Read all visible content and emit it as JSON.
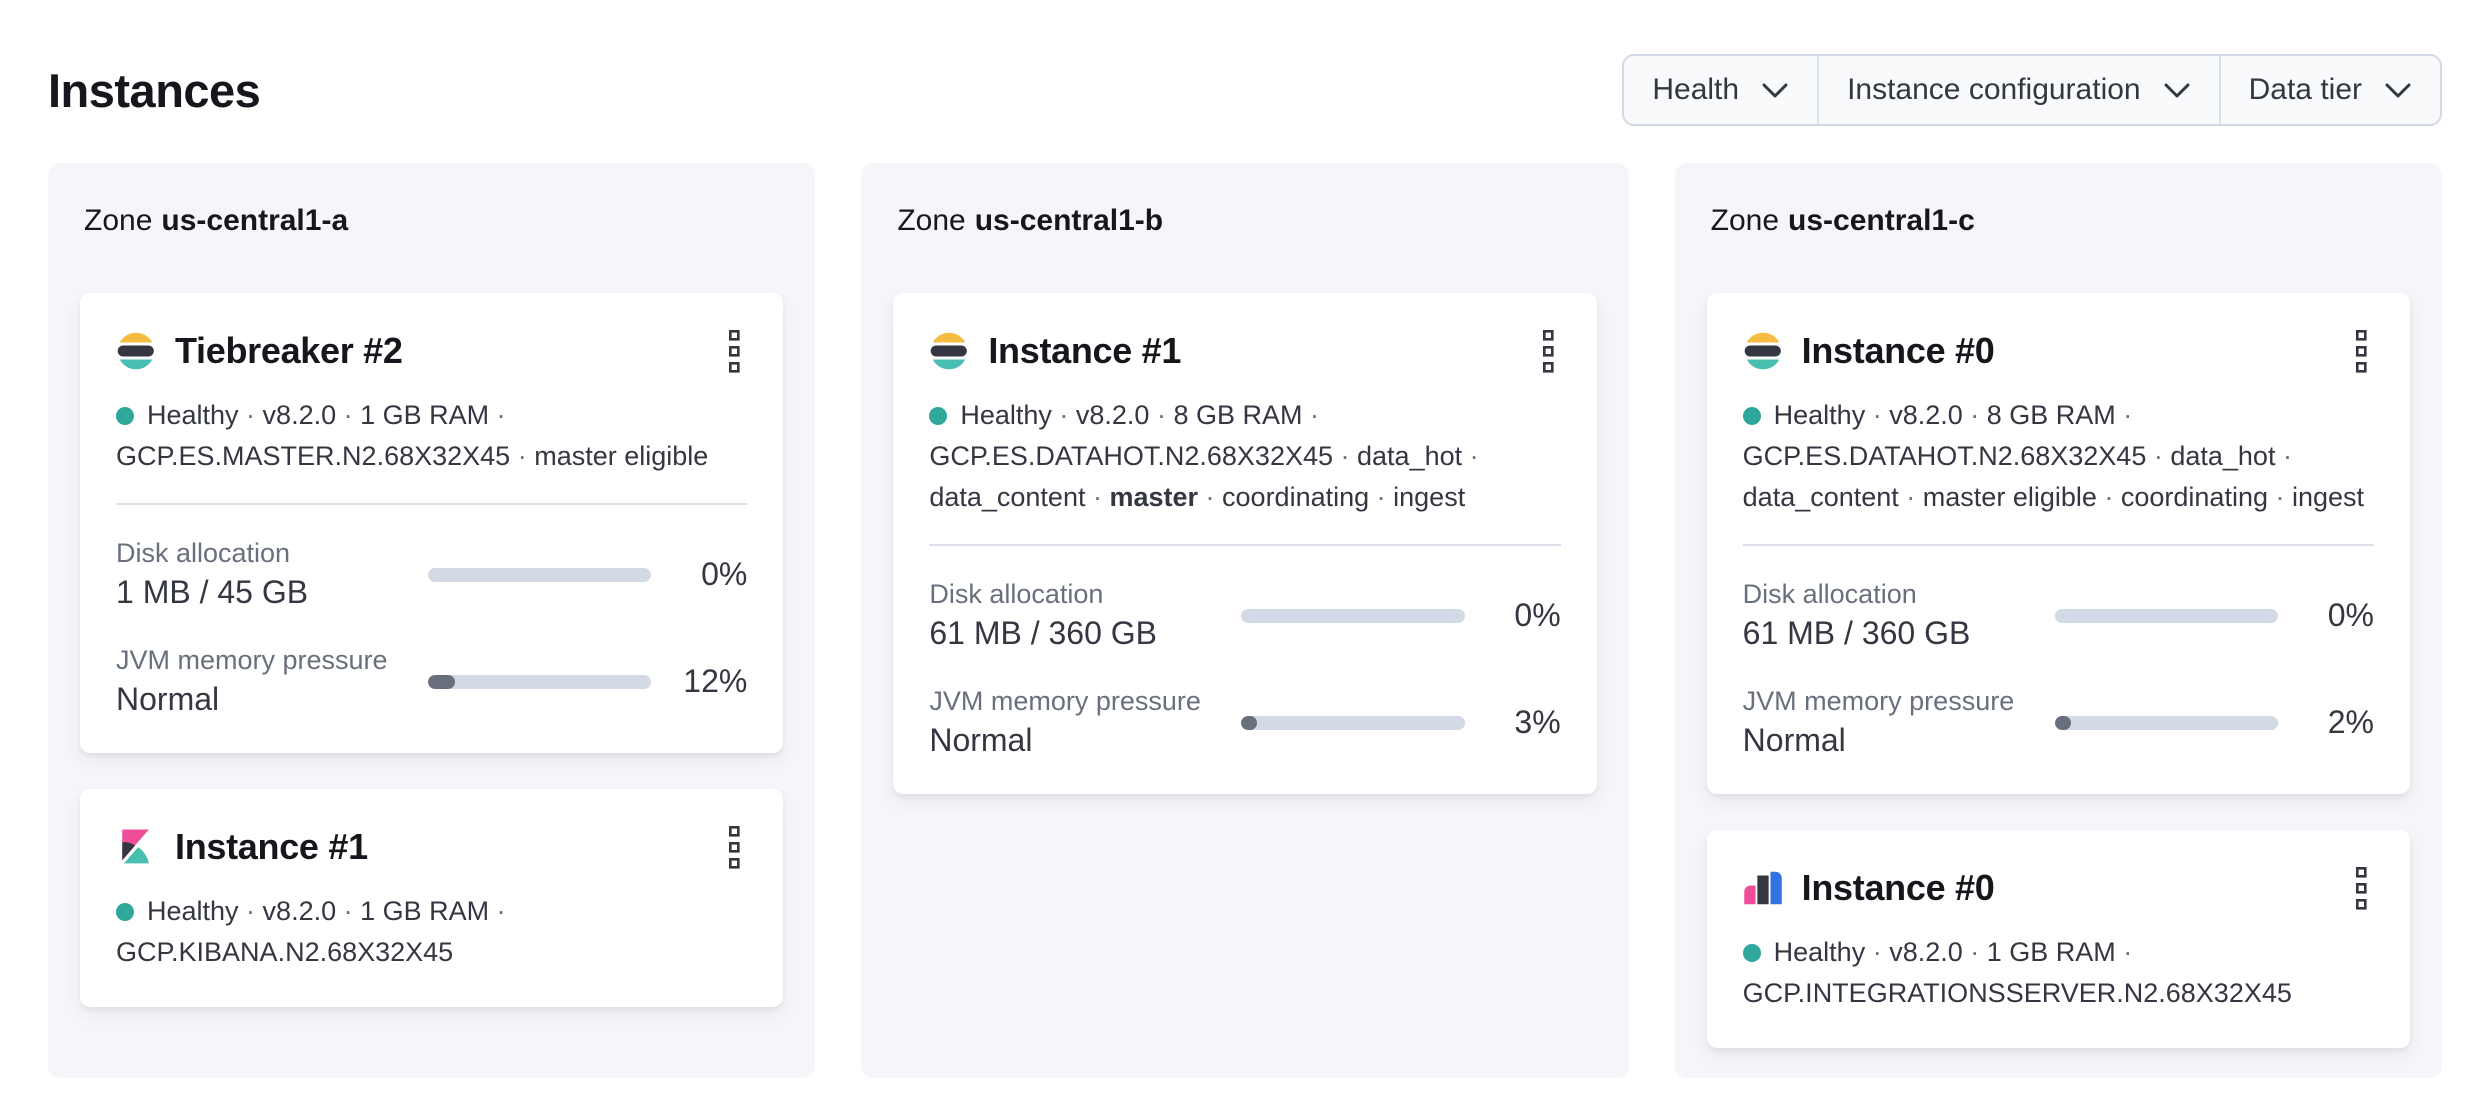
{
  "page": {
    "title": "Instances"
  },
  "meta_separator": "·",
  "filters": [
    {
      "label": "Health"
    },
    {
      "label": "Instance configuration"
    },
    {
      "label": "Data tier"
    }
  ],
  "colors": {
    "health_dot": "#2fa79c",
    "progress_track": "#d3dae6",
    "progress_fill": "#696f7d",
    "logo_yellow": "#f4bd42",
    "logo_teal": "#49bfb1",
    "logo_dark": "#343741",
    "logo_pink": "#f04e98",
    "logo_blue": "#3173e0"
  },
  "zones": [
    {
      "zone_prefix": "Zone",
      "name": "us-central1-a",
      "cards": [
        {
          "logo": "elasticsearch-logo",
          "title": "Tiebreaker #2",
          "meta": [
            {
              "text": "Healthy"
            },
            {
              "text": "v8.2.0"
            },
            {
              "text": "1 GB RAM"
            },
            {
              "text": "GCP.ES.MASTER.N2.68X32X45"
            },
            {
              "text": "master eligible"
            }
          ],
          "metrics": [
            {
              "label": "Disk allocation",
              "value": "1 MB / 45 GB",
              "percent": 0,
              "percent_label": "0%"
            },
            {
              "label": "JVM memory pressure",
              "value": "Normal",
              "percent": 12,
              "percent_label": "12%"
            }
          ]
        },
        {
          "logo": "kibana-logo",
          "title": "Instance #1",
          "meta": [
            {
              "text": "Healthy"
            },
            {
              "text": "v8.2.0"
            },
            {
              "text": "1 GB RAM"
            },
            {
              "text": "GCP.KIBANA.N2.68X32X45"
            }
          ],
          "metrics": []
        }
      ]
    },
    {
      "zone_prefix": "Zone",
      "name": "us-central1-b",
      "cards": [
        {
          "logo": "elasticsearch-logo",
          "title": "Instance #1",
          "meta": [
            {
              "text": "Healthy"
            },
            {
              "text": "v8.2.0"
            },
            {
              "text": "8 GB RAM"
            },
            {
              "text": "GCP.ES.DATAHOT.N2.68X32X45"
            },
            {
              "text": "data_hot"
            },
            {
              "text": "data_content"
            },
            {
              "text": "master",
              "bold": true
            },
            {
              "text": "coordinating"
            },
            {
              "text": "ingest"
            }
          ],
          "metrics": [
            {
              "label": "Disk allocation",
              "value": "61 MB / 360 GB",
              "percent": 0,
              "percent_label": "0%"
            },
            {
              "label": "JVM memory pressure",
              "value": "Normal",
              "percent": 3,
              "percent_label": "3%"
            }
          ]
        }
      ]
    },
    {
      "zone_prefix": "Zone",
      "name": "us-central1-c",
      "cards": [
        {
          "logo": "elasticsearch-logo",
          "title": "Instance #0",
          "meta": [
            {
              "text": "Healthy"
            },
            {
              "text": "v8.2.0"
            },
            {
              "text": "8 GB RAM"
            },
            {
              "text": "GCP.ES.DATAHOT.N2.68X32X45"
            },
            {
              "text": "data_hot"
            },
            {
              "text": "data_content"
            },
            {
              "text": "master eligible"
            },
            {
              "text": "coordinating"
            },
            {
              "text": "ingest"
            }
          ],
          "metrics": [
            {
              "label": "Disk allocation",
              "value": "61 MB / 360 GB",
              "percent": 0,
              "percent_label": "0%"
            },
            {
              "label": "JVM memory pressure",
              "value": "Normal",
              "percent": 2,
              "percent_label": "2%"
            }
          ]
        },
        {
          "logo": "integrations-server-logo",
          "title": "Instance #0",
          "meta": [
            {
              "text": "Healthy"
            },
            {
              "text": "v8.2.0"
            },
            {
              "text": "1 GB RAM"
            },
            {
              "text": "GCP.INTEGRATIONSSERVER.N2.68X32X45"
            }
          ],
          "metrics": []
        }
      ]
    }
  ]
}
